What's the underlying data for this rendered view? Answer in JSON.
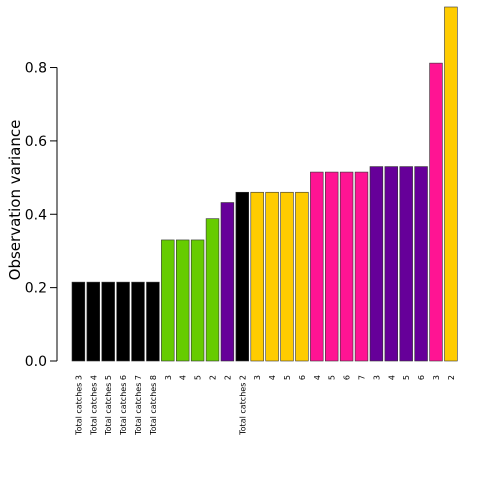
{
  "chart_data": {
    "type": "bar",
    "title": "",
    "xlabel": "",
    "ylabel": "Observation variance",
    "ylim": [
      0,
      0.965
    ],
    "yticks": [
      0.0,
      0.2,
      0.4,
      0.6,
      0.8
    ],
    "ytick_labels": [
      "0.0",
      "0.2",
      "0.4",
      "0.6",
      "0.8"
    ],
    "grid": false,
    "legend": "none",
    "categories": [
      "Total catches 3",
      "Total catches 4",
      "Total catches 5",
      "Total catches 6",
      "Total catches 7",
      "Total catches 8",
      "3",
      "4",
      "5",
      "2",
      "2",
      "Total catches 2",
      "3",
      "4",
      "5",
      "6",
      "4",
      "5",
      "6",
      "7",
      "3",
      "4",
      "5",
      "6",
      "3",
      "2"
    ],
    "values": [
      0.215,
      0.215,
      0.215,
      0.215,
      0.215,
      0.215,
      0.33,
      0.33,
      0.33,
      0.388,
      0.432,
      0.46,
      0.46,
      0.46,
      0.46,
      0.46,
      0.515,
      0.515,
      0.515,
      0.515,
      0.53,
      0.53,
      0.53,
      0.53,
      0.812,
      0.965
    ],
    "colors": [
      "#000000",
      "#000000",
      "#000000",
      "#000000",
      "#000000",
      "#000000",
      "#66CC00",
      "#66CC00",
      "#66CC00",
      "#66CC00",
      "#660099",
      "#000000",
      "#FFCC00",
      "#FFCC00",
      "#FFCC00",
      "#FFCC00",
      "#FF1493",
      "#FF1493",
      "#FF1493",
      "#FF1493",
      "#660099",
      "#660099",
      "#660099",
      "#660099",
      "#FF1493",
      "#FFCC00"
    ]
  }
}
